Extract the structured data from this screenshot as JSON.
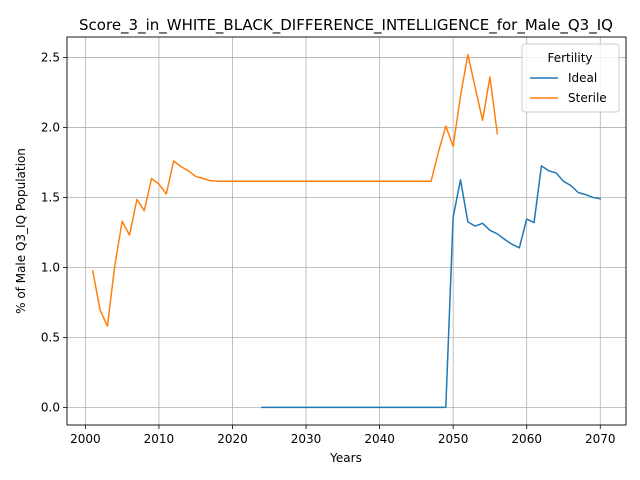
{
  "chart_data": {
    "type": "line",
    "title": "Score_3_in_WHITE_BLACK_DIFFERENCE_INTELLIGENCE_for_Male_Q3_IQ",
    "xlabel": "Years",
    "ylabel": "% of Male Q3_IQ Population",
    "xlim": [
      1997.5,
      2073.5
    ],
    "ylim": [
      -0.126,
      2.646
    ],
    "xticks": [
      2000,
      2010,
      2020,
      2030,
      2040,
      2050,
      2060,
      2070
    ],
    "xtick_labels": [
      "2000",
      "2010",
      "2020",
      "2030",
      "2040",
      "2050",
      "2060",
      "2070"
    ],
    "yticks": [
      0.0,
      0.5,
      1.0,
      1.5,
      2.0,
      2.5
    ],
    "ytick_labels": [
      "0.0",
      "0.5",
      "1.0",
      "1.5",
      "2.0",
      "2.5"
    ],
    "grid": true,
    "legend": {
      "title": "Fertility",
      "position": "top-right"
    },
    "series": [
      {
        "name": "Ideal",
        "color": "#1f77b4",
        "points": [
          [
            2024,
            0.0
          ],
          [
            2025,
            0.0
          ],
          [
            2030,
            0.0
          ],
          [
            2035,
            0.0
          ],
          [
            2040,
            0.0
          ],
          [
            2045,
            0.0
          ],
          [
            2049,
            0.0
          ],
          [
            2050,
            1.36
          ],
          [
            2051,
            1.625
          ],
          [
            2052,
            1.325
          ],
          [
            2053,
            1.295
          ],
          [
            2054,
            1.315
          ],
          [
            2055,
            1.265
          ],
          [
            2056,
            1.24
          ],
          [
            2057,
            1.2
          ],
          [
            2058,
            1.165
          ],
          [
            2059,
            1.14
          ],
          [
            2060,
            1.345
          ],
          [
            2061,
            1.32
          ],
          [
            2062,
            1.725
          ],
          [
            2063,
            1.69
          ],
          [
            2064,
            1.675
          ],
          [
            2065,
            1.615
          ],
          [
            2066,
            1.585
          ],
          [
            2067,
            1.535
          ],
          [
            2068,
            1.52
          ],
          [
            2069,
            1.5
          ],
          [
            2070,
            1.49
          ]
        ]
      },
      {
        "name": "Sterile",
        "color": "#ff7f0e",
        "points": [
          [
            2001,
            0.975
          ],
          [
            2002,
            0.695
          ],
          [
            2003,
            0.58
          ],
          [
            2004,
            1.015
          ],
          [
            2005,
            1.33
          ],
          [
            2006,
            1.23
          ],
          [
            2007,
            1.485
          ],
          [
            2008,
            1.405
          ],
          [
            2009,
            1.635
          ],
          [
            2010,
            1.595
          ],
          [
            2011,
            1.525
          ],
          [
            2012,
            1.76
          ],
          [
            2013,
            1.72
          ],
          [
            2014,
            1.69
          ],
          [
            2015,
            1.65
          ],
          [
            2016,
            1.635
          ],
          [
            2017,
            1.62
          ],
          [
            2018,
            1.615
          ],
          [
            2020,
            1.615
          ],
          [
            2025,
            1.615
          ],
          [
            2030,
            1.615
          ],
          [
            2035,
            1.615
          ],
          [
            2040,
            1.615
          ],
          [
            2045,
            1.615
          ],
          [
            2047,
            1.615
          ],
          [
            2048,
            1.825
          ],
          [
            2049,
            2.01
          ],
          [
            2050,
            1.865
          ],
          [
            2051,
            2.225
          ],
          [
            2052,
            2.52
          ],
          [
            2053,
            2.285
          ],
          [
            2054,
            2.05
          ],
          [
            2055,
            2.36
          ],
          [
            2056,
            1.955
          ]
        ]
      }
    ]
  }
}
